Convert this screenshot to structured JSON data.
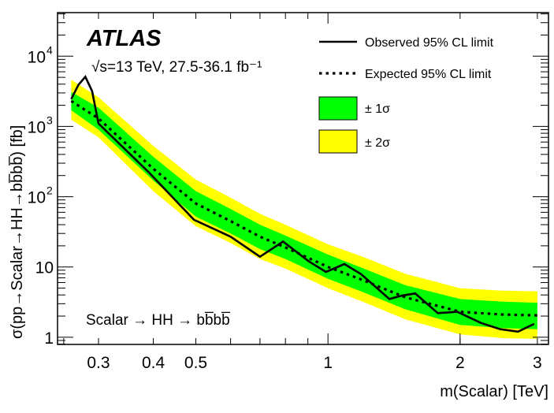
{
  "chart_data": {
    "type": "line",
    "title": "",
    "experiment_label": "ATLAS",
    "energy_label": "√s=13 TeV, 27.5-36.1 fb⁻¹",
    "process_label": "Scalar → HH → bb̅bb̅",
    "xlabel": "m(Scalar) [TeV]",
    "ylabel": "σ(pp→Scalar→HH→bb̅bb̅) [fb]",
    "xscale": "log",
    "yscale": "log",
    "xlim": [
      0.242,
      3.18
    ],
    "ylim": [
      0.79,
      41700
    ],
    "x_ticks": [
      {
        "value": 0.3,
        "label": "0.3"
      },
      {
        "value": 0.4,
        "label": "0.4"
      },
      {
        "value": 0.5,
        "label": "0.5"
      },
      {
        "value": 1,
        "label": "1"
      },
      {
        "value": 2,
        "label": "2"
      },
      {
        "value": 3,
        "label": "3"
      }
    ],
    "y_ticks": [
      {
        "value": 1,
        "label": "1",
        "exp": ""
      },
      {
        "value": 10,
        "label": "10",
        "exp": ""
      },
      {
        "value": 100,
        "label": "10",
        "exp": "2"
      },
      {
        "value": 1000,
        "label": "10",
        "exp": "3"
      },
      {
        "value": 10000,
        "label": "10",
        "exp": "4"
      }
    ],
    "legend_position": "top-right",
    "legend": [
      {
        "key": "observed",
        "label": "Observed 95% CL limit",
        "style": "solid-line"
      },
      {
        "key": "expected",
        "label": "Expected 95% CL limit",
        "style": "dotted-line"
      },
      {
        "key": "one_sigma",
        "label": "± 1σ",
        "style": "box",
        "color": "#00ff00"
      },
      {
        "key": "two_sigma",
        "label": "± 2σ",
        "style": "box",
        "color": "#ffff00"
      }
    ],
    "colors": {
      "one_sigma": "#00ff00",
      "two_sigma": "#ffff00",
      "line": "#000000"
    },
    "series": [
      {
        "name": "Observed 95% CL limit",
        "x": [
          0.26,
          0.27,
          0.28,
          0.29,
          0.3,
          0.39,
          0.495,
          0.6,
          0.7,
          0.79,
          0.905,
          0.99,
          1.09,
          1.19,
          1.38,
          1.47,
          1.58,
          1.78,
          1.97,
          2.23,
          2.47,
          2.71,
          2.95
        ],
        "y": [
          2450,
          3900,
          5100,
          3200,
          1100,
          225,
          47,
          27,
          14,
          23,
          12,
          8.5,
          11,
          7.9,
          3.5,
          3.9,
          4.2,
          2.2,
          2.3,
          1.6,
          1.3,
          1.2,
          1.55
        ]
      },
      {
        "name": "Expected 95% CL limit",
        "x": [
          0.26,
          0.3,
          0.4,
          0.5,
          0.6,
          0.7,
          0.8,
          1.0,
          1.2,
          1.5,
          2.0,
          2.5,
          3.0
        ],
        "y": [
          2300,
          1300,
          250,
          80,
          45,
          27,
          19,
          10,
          6.5,
          3.7,
          2.3,
          2.1,
          2.05
        ]
      }
    ],
    "bands": {
      "x": [
        0.26,
        0.3,
        0.4,
        0.5,
        0.6,
        0.7,
        0.8,
        1.0,
        1.2,
        1.5,
        2.0,
        2.5,
        3.0
      ],
      "one_sigma_low": [
        1700,
        900,
        170,
        52,
        30,
        18,
        13,
        6.8,
        4.4,
        2.5,
        1.5,
        1.35,
        1.3
      ],
      "one_sigma_high": [
        3100,
        1850,
        370,
        120,
        67,
        40,
        28,
        15,
        9.6,
        5.5,
        3.5,
        3.2,
        3.1
      ],
      "two_sigma_low": [
        1250,
        700,
        120,
        38,
        22,
        13,
        9.5,
        5,
        3.2,
        1.8,
        1.1,
        0.97,
        0.95
      ],
      "two_sigma_high": [
        4600,
        2600,
        530,
        175,
        97,
        57,
        40,
        21,
        14,
        8,
        5,
        4.6,
        4.5
      ]
    }
  }
}
